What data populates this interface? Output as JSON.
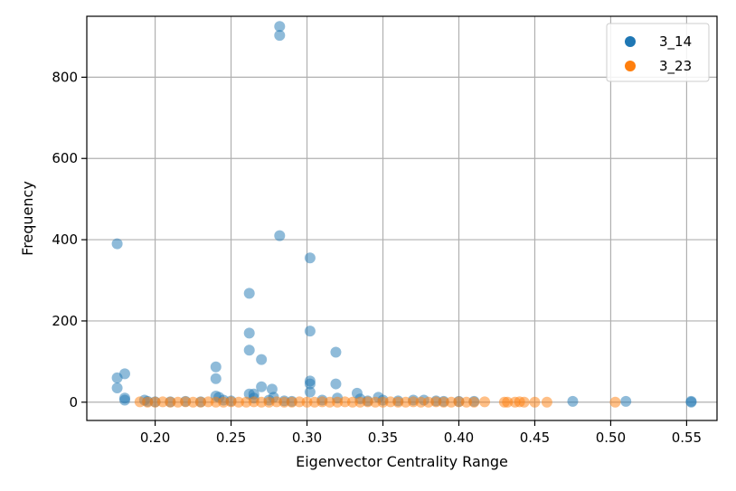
{
  "chart_data": {
    "type": "scatter",
    "xlabel": "Eigenvector Centrality Range",
    "ylabel": "Frequency",
    "xlim": [
      0.155,
      0.57
    ],
    "ylim": [
      -45,
      950
    ],
    "x_ticks": [
      0.2,
      0.25,
      0.3,
      0.35,
      0.4,
      0.45,
      0.5,
      0.55
    ],
    "x_tick_labels": [
      "0.20",
      "0.25",
      "0.30",
      "0.35",
      "0.40",
      "0.45",
      "0.50",
      "0.55"
    ],
    "y_ticks": [
      0,
      200,
      400,
      600,
      800
    ],
    "y_tick_labels": [
      "0",
      "200",
      "400",
      "600",
      "800"
    ],
    "grid": true,
    "legend_position": "top-right",
    "series": [
      {
        "name": "3_14",
        "color": "#1f77b4",
        "opacity": 0.5,
        "points": [
          [
            0.175,
            390
          ],
          [
            0.175,
            60
          ],
          [
            0.175,
            35
          ],
          [
            0.18,
            70
          ],
          [
            0.18,
            10
          ],
          [
            0.18,
            5
          ],
          [
            0.193,
            5
          ],
          [
            0.195,
            2
          ],
          [
            0.2,
            1
          ],
          [
            0.21,
            1
          ],
          [
            0.22,
            2
          ],
          [
            0.23,
            1
          ],
          [
            0.24,
            87
          ],
          [
            0.24,
            58
          ],
          [
            0.24,
            15
          ],
          [
            0.242,
            12
          ],
          [
            0.245,
            5
          ],
          [
            0.25,
            3
          ],
          [
            0.262,
            268
          ],
          [
            0.262,
            170
          ],
          [
            0.262,
            128
          ],
          [
            0.262,
            20
          ],
          [
            0.265,
            20
          ],
          [
            0.265,
            10
          ],
          [
            0.27,
            105
          ],
          [
            0.27,
            38
          ],
          [
            0.275,
            5
          ],
          [
            0.277,
            32
          ],
          [
            0.278,
            12
          ],
          [
            0.282,
            925
          ],
          [
            0.282,
            903
          ],
          [
            0.282,
            410
          ],
          [
            0.285,
            3
          ],
          [
            0.29,
            2
          ],
          [
            0.302,
            355
          ],
          [
            0.302,
            175
          ],
          [
            0.302,
            52
          ],
          [
            0.302,
            45
          ],
          [
            0.302,
            25
          ],
          [
            0.31,
            5
          ],
          [
            0.319,
            123
          ],
          [
            0.319,
            45
          ],
          [
            0.32,
            10
          ],
          [
            0.333,
            22
          ],
          [
            0.335,
            8
          ],
          [
            0.34,
            3
          ],
          [
            0.347,
            12
          ],
          [
            0.35,
            5
          ],
          [
            0.36,
            3
          ],
          [
            0.37,
            5
          ],
          [
            0.377,
            5
          ],
          [
            0.385,
            3
          ],
          [
            0.39,
            2
          ],
          [
            0.4,
            2
          ],
          [
            0.41,
            2
          ],
          [
            0.475,
            2
          ],
          [
            0.51,
            2
          ],
          [
            0.553,
            2
          ],
          [
            0.553,
            0
          ]
        ]
      },
      {
        "name": "3_23",
        "color": "#ff7f0e",
        "opacity": 0.5,
        "points": [
          [
            0.19,
            1
          ],
          [
            0.195,
            0
          ],
          [
            0.2,
            0
          ],
          [
            0.205,
            1
          ],
          [
            0.21,
            0
          ],
          [
            0.215,
            0
          ],
          [
            0.22,
            1
          ],
          [
            0.225,
            0
          ],
          [
            0.23,
            0
          ],
          [
            0.235,
            1
          ],
          [
            0.24,
            0
          ],
          [
            0.245,
            0
          ],
          [
            0.25,
            1
          ],
          [
            0.255,
            0
          ],
          [
            0.26,
            0
          ],
          [
            0.265,
            1
          ],
          [
            0.27,
            0
          ],
          [
            0.275,
            0
          ],
          [
            0.28,
            1
          ],
          [
            0.285,
            0
          ],
          [
            0.29,
            0
          ],
          [
            0.295,
            1
          ],
          [
            0.3,
            0
          ],
          [
            0.305,
            0
          ],
          [
            0.31,
            1
          ],
          [
            0.315,
            0
          ],
          [
            0.32,
            0
          ],
          [
            0.325,
            1
          ],
          [
            0.33,
            0
          ],
          [
            0.335,
            0
          ],
          [
            0.34,
            1
          ],
          [
            0.345,
            0
          ],
          [
            0.35,
            0
          ],
          [
            0.355,
            1
          ],
          [
            0.36,
            0
          ],
          [
            0.365,
            0
          ],
          [
            0.37,
            1
          ],
          [
            0.375,
            0
          ],
          [
            0.38,
            0
          ],
          [
            0.385,
            1
          ],
          [
            0.39,
            0
          ],
          [
            0.395,
            0
          ],
          [
            0.4,
            1
          ],
          [
            0.405,
            0
          ],
          [
            0.41,
            0
          ],
          [
            0.417,
            1
          ],
          [
            0.43,
            0
          ],
          [
            0.432,
            0
          ],
          [
            0.437,
            0
          ],
          [
            0.44,
            1
          ],
          [
            0.443,
            0
          ],
          [
            0.45,
            0
          ],
          [
            0.458,
            0
          ],
          [
            0.503,
            0
          ]
        ]
      }
    ]
  }
}
